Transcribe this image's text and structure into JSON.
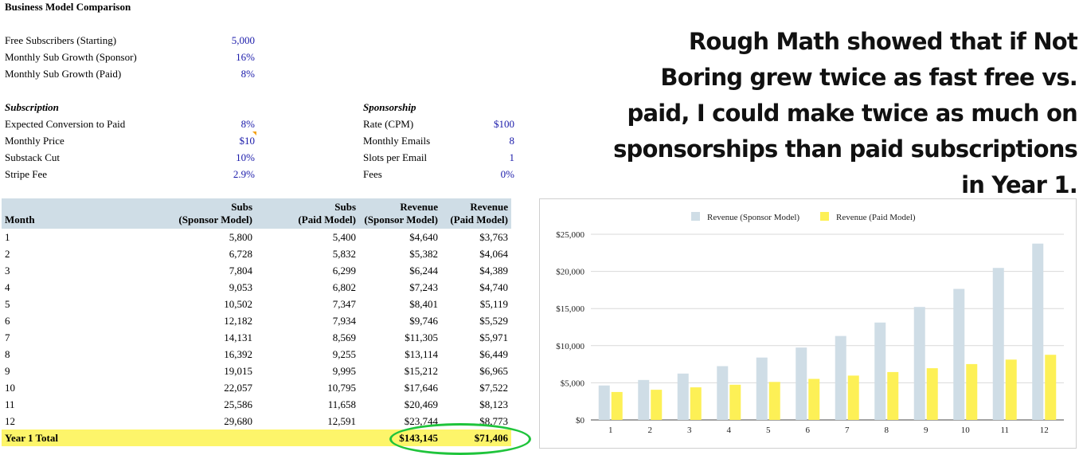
{
  "sheet": {
    "title": "Business Model Comparison",
    "inputs": [
      {
        "label": "Free Subscribers (Starting)",
        "value": "5,000"
      },
      {
        "label": "Monthly Sub Growth (Sponsor)",
        "value": "16%"
      },
      {
        "label": "Monthly Sub Growth (Paid)",
        "value": "8%"
      }
    ],
    "subscription": {
      "heading": "Subscription",
      "rows": [
        {
          "label": "Expected Conversion to Paid",
          "value": "8%"
        },
        {
          "label": "Monthly Price",
          "value": "$10"
        },
        {
          "label": "Substack Cut",
          "value": "10%"
        },
        {
          "label": "Stripe Fee",
          "value": "2.9%"
        }
      ]
    },
    "sponsorship": {
      "heading": "Sponsorship",
      "rows": [
        {
          "label": "Rate (CPM)",
          "value": "$100"
        },
        {
          "label": "Monthly Emails",
          "value": "8"
        },
        {
          "label": "Slots per Email",
          "value": "1"
        },
        {
          "label": "Fees",
          "value": "0%"
        }
      ]
    }
  },
  "headline": "Rough Math showed that if Not Boring grew twice as fast free vs. paid, I could make twice as much on sponsorships than paid subscriptions in Year 1.",
  "table": {
    "headers": [
      {
        "line1": "",
        "line2": "Month"
      },
      {
        "line1": "Subs",
        "line2": "(Sponsor Model)"
      },
      {
        "line1": "Subs",
        "line2": "(Paid Model)"
      },
      {
        "line1": "Revenue",
        "line2": "(Sponsor Model)"
      },
      {
        "line1": "Revenue",
        "line2": "(Paid Model)"
      }
    ],
    "rows": [
      [
        "1",
        "5,800",
        "5,400",
        "$4,640",
        "$3,763"
      ],
      [
        "2",
        "6,728",
        "5,832",
        "$5,382",
        "$4,064"
      ],
      [
        "3",
        "7,804",
        "6,299",
        "$6,244",
        "$4,389"
      ],
      [
        "4",
        "9,053",
        "6,802",
        "$7,243",
        "$4,740"
      ],
      [
        "5",
        "10,502",
        "7,347",
        "$8,401",
        "$5,119"
      ],
      [
        "6",
        "12,182",
        "7,934",
        "$9,746",
        "$5,529"
      ],
      [
        "7",
        "14,131",
        "8,569",
        "$11,305",
        "$5,971"
      ],
      [
        "8",
        "16,392",
        "9,255",
        "$13,114",
        "$6,449"
      ],
      [
        "9",
        "19,015",
        "9,995",
        "$15,212",
        "$6,965"
      ],
      [
        "10",
        "22,057",
        "10,795",
        "$17,646",
        "$7,522"
      ],
      [
        "11",
        "25,586",
        "11,658",
        "$20,469",
        "$8,123"
      ],
      [
        "12",
        "29,680",
        "12,591",
        "$23,744",
        "$8,773"
      ]
    ],
    "total": {
      "label": "Year 1 Total",
      "sponsor": "$143,145",
      "paid": "$71,406"
    }
  },
  "colors": {
    "sponsor": "#cfdde6",
    "paid": "#fdf056",
    "highlight": "#fdf56a",
    "circle": "#1fc43b",
    "value_text": "#1a1aaa"
  },
  "chart_data": {
    "type": "bar",
    "categories": [
      "1",
      "2",
      "3",
      "4",
      "5",
      "6",
      "7",
      "8",
      "9",
      "10",
      "11",
      "12"
    ],
    "series": [
      {
        "name": "Revenue (Sponsor Model)",
        "values": [
          4640,
          5382,
          6244,
          7243,
          8401,
          9746,
          11305,
          13114,
          15212,
          17646,
          20469,
          23744
        ]
      },
      {
        "name": "Revenue (Paid Model)",
        "values": [
          3763,
          4064,
          4389,
          4740,
          5119,
          5529,
          5971,
          6449,
          6965,
          7522,
          8123,
          8773
        ]
      }
    ],
    "yticks": [
      "$0",
      "$5,000",
      "$10,000",
      "$15,000",
      "$20,000",
      "$25,000"
    ],
    "ylim": [
      0,
      25000
    ],
    "grid": true,
    "legend": "top"
  }
}
